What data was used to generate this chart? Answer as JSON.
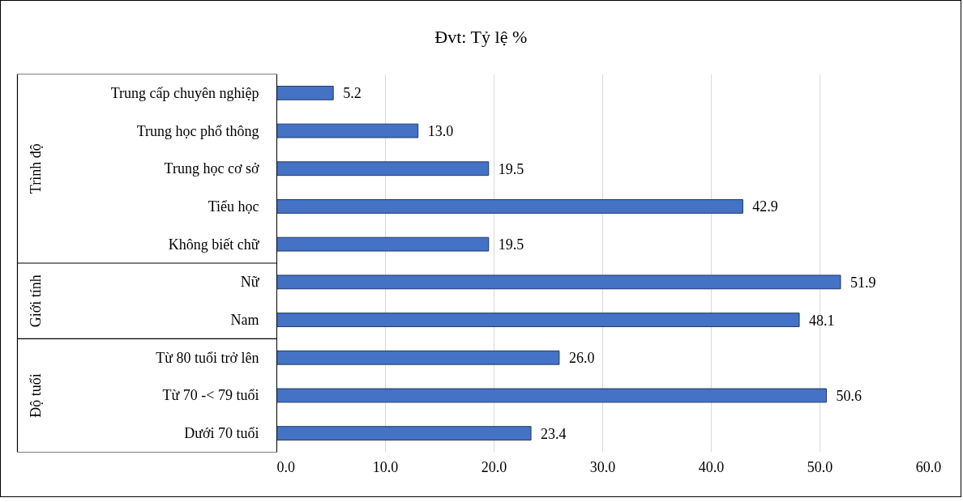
{
  "chart_data": {
    "type": "bar",
    "orientation": "horizontal",
    "title": "Đvt: Tỷ lệ %",
    "categories": [
      "Trung cấp chuyên nghiệp",
      "Trung học phổ thông",
      "Trung học cơ sở",
      "Tiểu học",
      "Không biết chữ",
      "Nữ",
      "Nam",
      "Từ 80 tuổi trở lên",
      "Từ 70 -< 79 tuổi",
      "Dưới 70 tuổi"
    ],
    "values": [
      5.2,
      13.0,
      19.5,
      42.9,
      19.5,
      51.9,
      48.1,
      26.0,
      50.6,
      23.4
    ],
    "value_labels": [
      "5.2",
      "13.0",
      "19.5",
      "42.9",
      "19.5",
      "51.9",
      "48.1",
      "26.0",
      "50.6",
      "23.4"
    ],
    "color": "#4472c4",
    "xlim": [
      0,
      60
    ],
    "xticks": [
      {
        "value": 0,
        "label": "0.0"
      },
      {
        "value": 10,
        "label": "10.0"
      },
      {
        "value": 20,
        "label": "20.0"
      },
      {
        "value": 30,
        "label": "30.0"
      },
      {
        "value": 40,
        "label": "40.0"
      },
      {
        "value": 50,
        "label": "50.0"
      },
      {
        "value": 60,
        "label": "60.0"
      }
    ],
    "grid": "x",
    "annotations": [
      "Trình độ",
      "Giới tính",
      "Độ tuổi"
    ]
  }
}
